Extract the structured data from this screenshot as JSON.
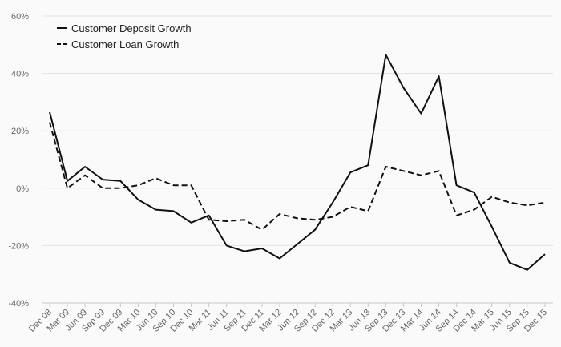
{
  "chart_data": {
    "type": "line",
    "x": [
      "Dec 08",
      "Mar 09",
      "Jun 09",
      "Sep 09",
      "Dec 09",
      "Mar 10",
      "Jun 10",
      "Sep 10",
      "Dec 10",
      "Mar 11",
      "Jun 11",
      "Sep 11",
      "Dec 11",
      "Mar 12",
      "Jun 12",
      "Sep 12",
      "Dec 12",
      "Mar 13",
      "Jun 13",
      "Sep 13",
      "Dec 13",
      "Mar 14",
      "Jun 14",
      "Sep 14",
      "Dec 14",
      "Mar 15",
      "Jun 15",
      "Sep 15",
      "Dec 15"
    ],
    "series": [
      {
        "name": "Customer Deposit Growth",
        "style": "solid",
        "color": "#111111",
        "values": [
          26.5,
          2.5,
          7.5,
          3,
          2.5,
          -4,
          -7.5,
          -8,
          -12,
          -9.5,
          -20,
          -22,
          -21,
          -24.5,
          -19.5,
          -14.5,
          -5,
          5.5,
          8,
          46.5,
          35,
          26,
          39,
          1,
          -1.5,
          -13.5,
          -26,
          -28.5,
          -23
        ]
      },
      {
        "name": "Customer Loan Growth",
        "style": "dashed",
        "color": "#111111",
        "values": [
          23,
          0,
          4.5,
          0,
          0,
          1,
          3.5,
          1,
          1,
          -11,
          -11.5,
          -11,
          -14.5,
          -9,
          -10.5,
          -11,
          -10,
          -6.5,
          -8,
          7.5,
          6,
          4.5,
          6,
          -9.5,
          -7.5,
          -3,
          -5,
          -6,
          -5
        ]
      }
    ],
    "y_ticks": [
      "60%",
      "40%",
      "20%",
      "0%",
      "-20%",
      "-40%"
    ],
    "ylim": [
      -40,
      60
    ],
    "grid": "horizontal",
    "legend_position": "top-left"
  }
}
